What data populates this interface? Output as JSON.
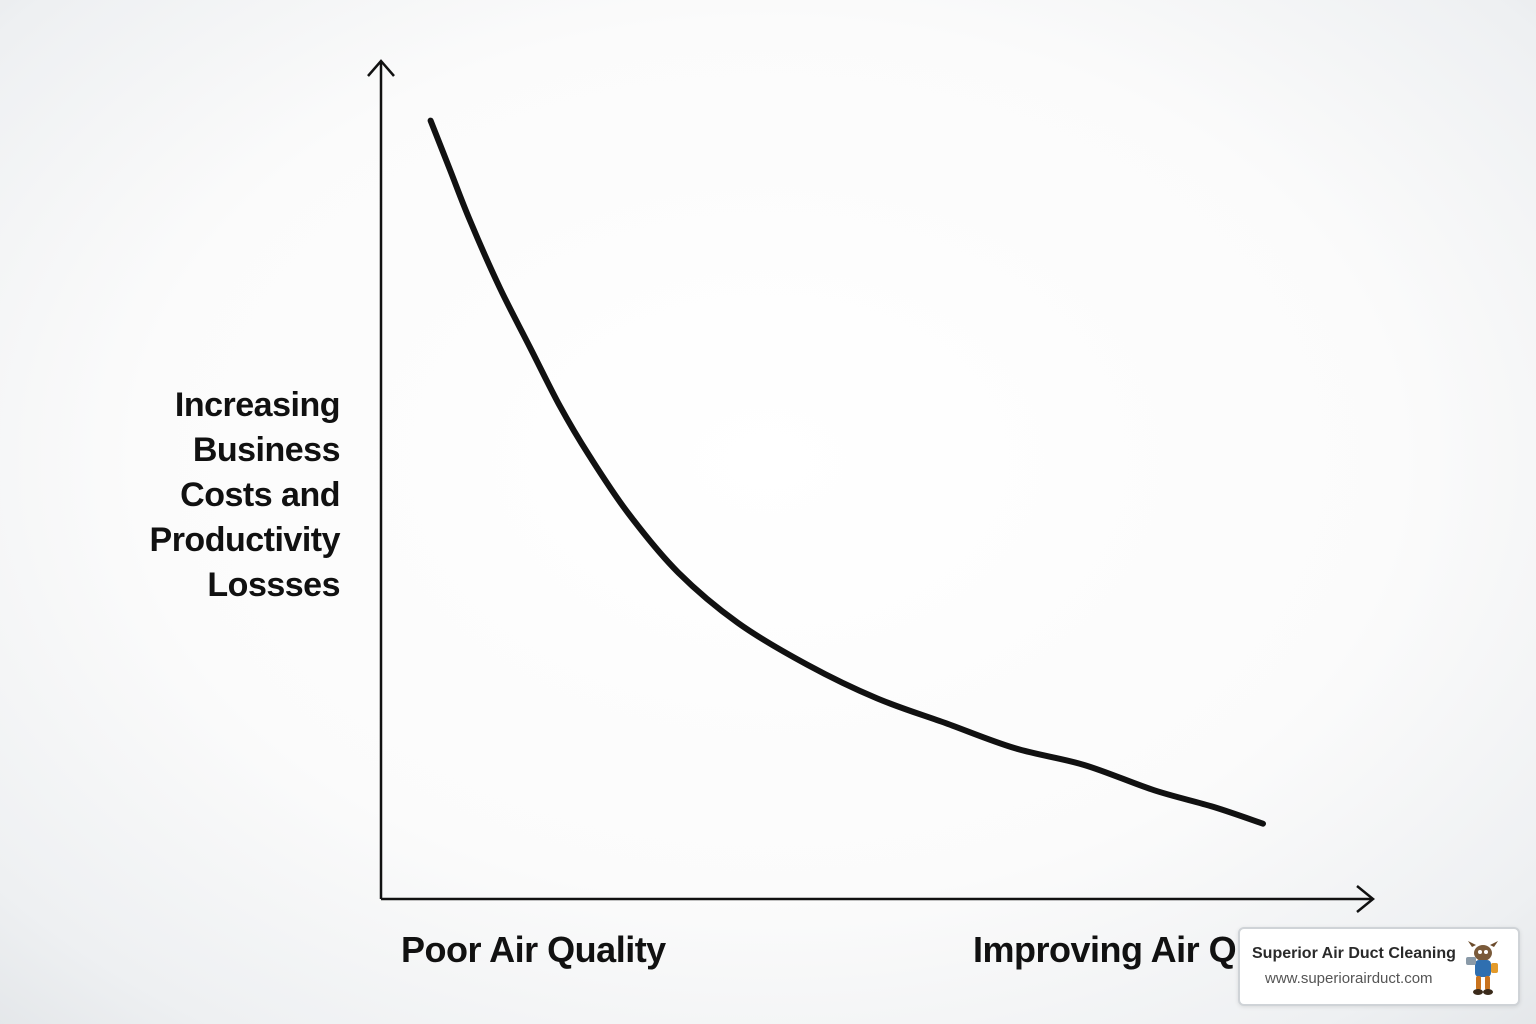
{
  "chart_data": {
    "type": "line",
    "title": "",
    "ylabel": "Increasing Business Costs and Productivity Losses",
    "ylabel_lines": [
      "Increasing",
      "Business",
      "Costs and",
      "Productivity",
      "Lossses"
    ],
    "xlabel_left": "Poor Air Quality",
    "xlabel_right": "Improving Air Q",
    "axis_ticks": "none",
    "grid": false,
    "series": [
      {
        "color": "#111111",
        "x": [
          0.05,
          0.07,
          0.09,
          0.12,
          0.15,
          0.18,
          0.21,
          0.25,
          0.3,
          0.36,
          0.43,
          0.5,
          0.57,
          0.64,
          0.71,
          0.78,
          0.84,
          0.89
        ],
        "y": [
          0.93,
          0.87,
          0.81,
          0.73,
          0.66,
          0.59,
          0.53,
          0.46,
          0.39,
          0.33,
          0.28,
          0.24,
          0.21,
          0.18,
          0.16,
          0.13,
          0.11,
          0.09
        ]
      }
    ],
    "xlim": [
      0,
      1
    ],
    "ylim": [
      0,
      1
    ]
  },
  "watermark": {
    "name": "Superior Air Duct Cleaning",
    "url": "www.superiorairduct.com",
    "mascot_icon": "duct-mascot-icon"
  }
}
